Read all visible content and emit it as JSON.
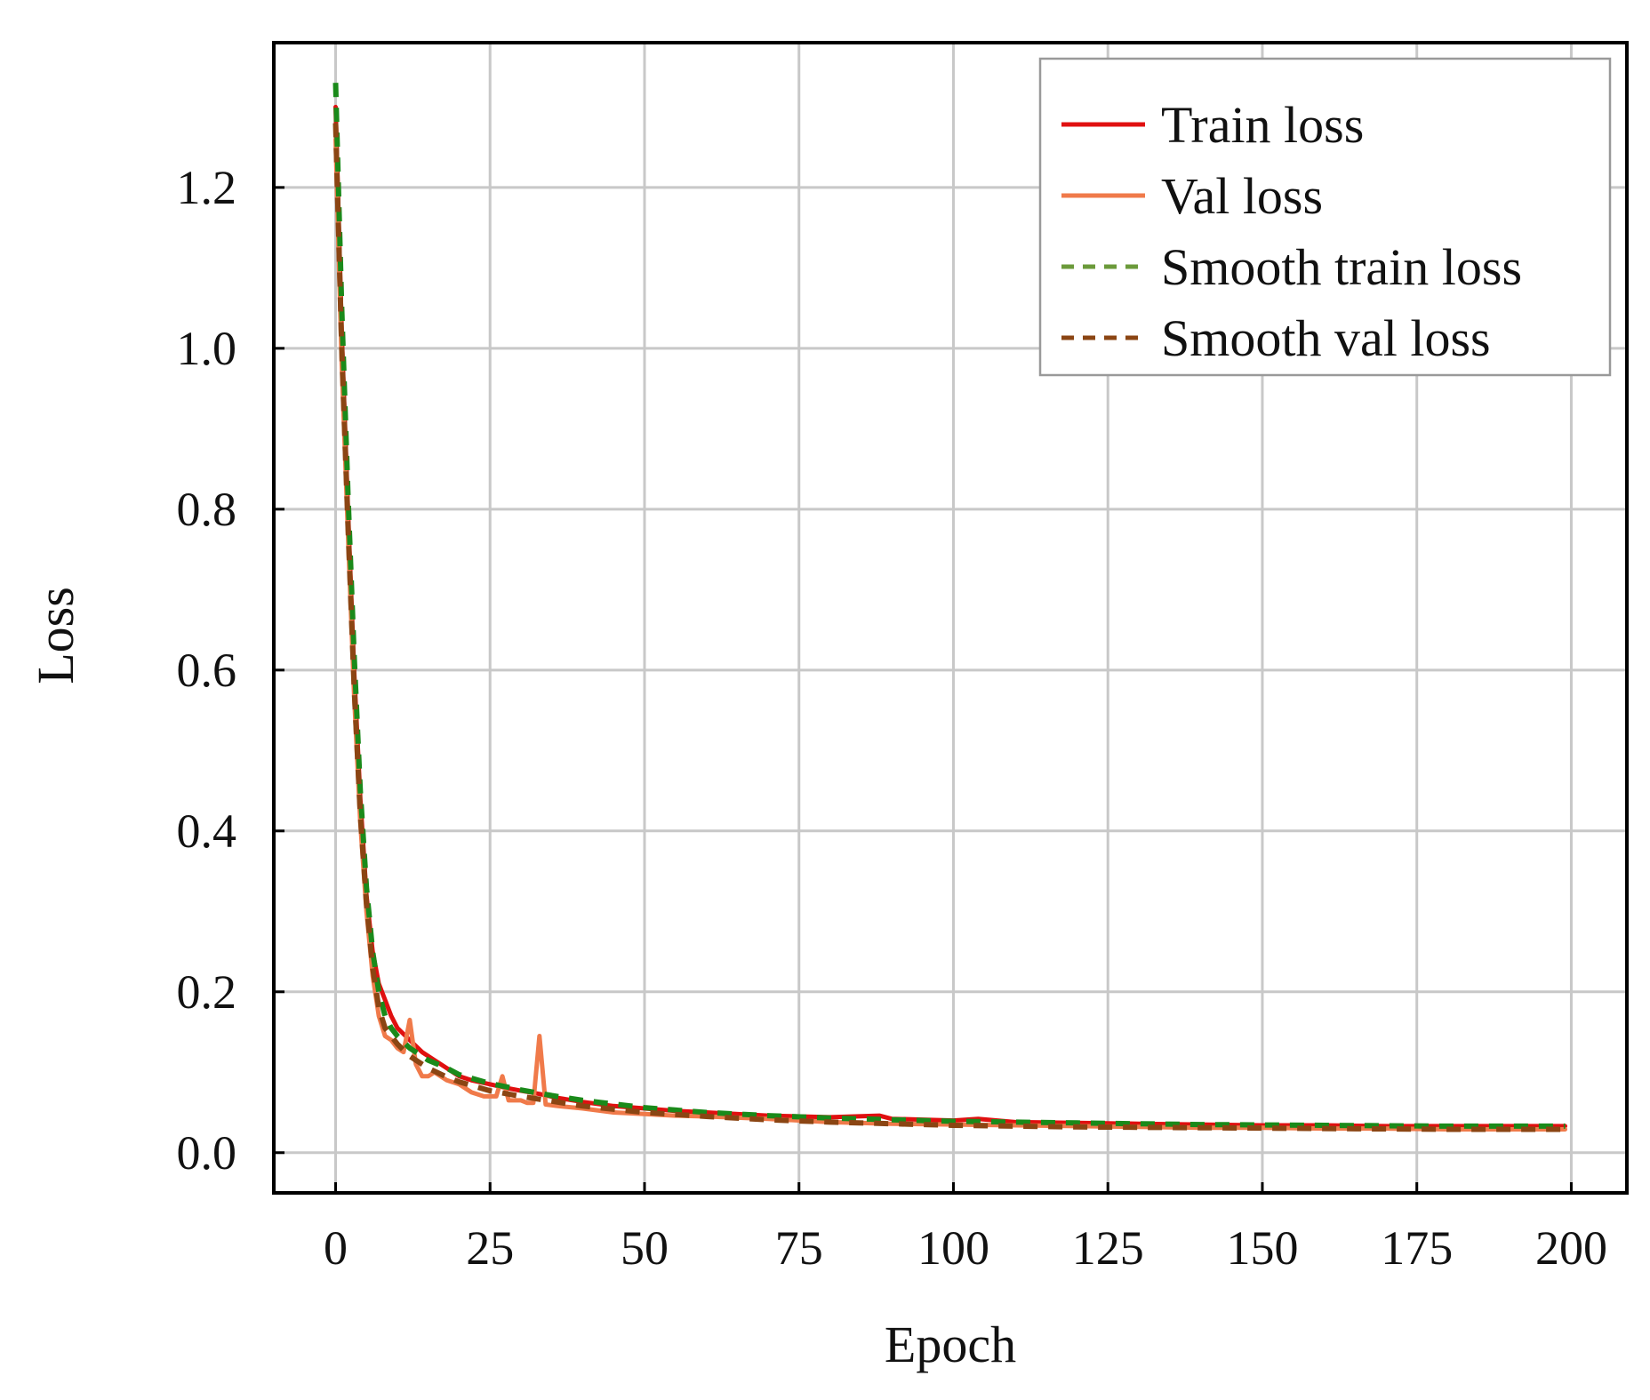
{
  "chart_data": {
    "type": "line",
    "title": "",
    "xlabel": "Epoch",
    "ylabel": "Loss",
    "xlim": [
      -10,
      209
    ],
    "ylim": [
      -0.05,
      1.38
    ],
    "xticks": [
      0,
      25,
      50,
      75,
      100,
      125,
      150,
      175,
      200
    ],
    "yticks": [
      0.0,
      0.2,
      0.4,
      0.6,
      0.8,
      1.0,
      1.2
    ],
    "xtick_labels": [
      "0",
      "25",
      "50",
      "75",
      "100",
      "125",
      "150",
      "175",
      "200"
    ],
    "ytick_labels": [
      "0.0",
      "0.2",
      "0.4",
      "0.6",
      "0.8",
      "1.0",
      "1.2"
    ],
    "grid": true,
    "legend_position": "top-right",
    "series": [
      {
        "name": "Train loss",
        "color": "#e01010",
        "style": "solid",
        "x": [
          0,
          1,
          2,
          3,
          4,
          5,
          6,
          7,
          8,
          9,
          10,
          12,
          14,
          16,
          18,
          20,
          22,
          25,
          28,
          30,
          33,
          36,
          40,
          45,
          50,
          55,
          60,
          70,
          80,
          88,
          90,
          100,
          104,
          110,
          120,
          130,
          140,
          150,
          160,
          170,
          180,
          190,
          199
        ],
        "y": [
          1.3,
          1.02,
          0.8,
          0.6,
          0.44,
          0.32,
          0.25,
          0.21,
          0.19,
          0.17,
          0.155,
          0.14,
          0.125,
          0.115,
          0.105,
          0.095,
          0.09,
          0.085,
          0.08,
          0.077,
          0.073,
          0.068,
          0.063,
          0.058,
          0.055,
          0.052,
          0.05,
          0.046,
          0.044,
          0.046,
          0.042,
          0.04,
          0.042,
          0.038,
          0.037,
          0.036,
          0.035,
          0.034,
          0.034,
          0.033,
          0.033,
          0.033,
          0.033
        ]
      },
      {
        "name": "Val loss",
        "color": "#f07a4a",
        "style": "solid",
        "x": [
          0,
          1,
          2,
          3,
          4,
          5,
          6,
          7,
          8,
          9,
          10,
          11,
          12,
          13,
          14,
          15,
          16,
          18,
          20,
          22,
          24,
          26,
          27,
          28,
          30,
          31,
          32,
          33,
          34,
          36,
          40,
          45,
          50,
          55,
          60,
          70,
          80,
          90,
          100,
          110,
          120,
          130,
          140,
          150,
          160,
          170,
          180,
          190,
          199
        ],
        "y": [
          1.26,
          0.98,
          0.77,
          0.57,
          0.41,
          0.3,
          0.22,
          0.17,
          0.145,
          0.14,
          0.13,
          0.125,
          0.165,
          0.11,
          0.095,
          0.095,
          0.1,
          0.09,
          0.085,
          0.075,
          0.07,
          0.07,
          0.095,
          0.065,
          0.065,
          0.062,
          0.062,
          0.145,
          0.06,
          0.058,
          0.055,
          0.05,
          0.048,
          0.046,
          0.045,
          0.042,
          0.038,
          0.036,
          0.035,
          0.034,
          0.033,
          0.032,
          0.031,
          0.031,
          0.03,
          0.03,
          0.029,
          0.029,
          0.029
        ]
      },
      {
        "name": "Smooth train loss",
        "color": "#1a8a1a",
        "style": "dashed",
        "x": [
          0,
          1,
          2,
          3,
          4,
          5,
          6,
          7,
          8,
          9,
          10,
          12,
          15,
          18,
          20,
          25,
          30,
          35,
          40,
          50,
          60,
          70,
          80,
          90,
          100,
          120,
          140,
          160,
          180,
          199
        ],
        "y": [
          1.33,
          1.05,
          0.82,
          0.62,
          0.45,
          0.33,
          0.25,
          0.2,
          0.17,
          0.155,
          0.145,
          0.13,
          0.115,
          0.105,
          0.097,
          0.086,
          0.078,
          0.071,
          0.065,
          0.056,
          0.05,
          0.046,
          0.043,
          0.041,
          0.039,
          0.037,
          0.035,
          0.034,
          0.033,
          0.033
        ]
      },
      {
        "name": "Smooth val loss",
        "color": "#8b4513",
        "style": "dashed",
        "x": [
          0,
          1,
          2,
          3,
          4,
          5,
          6,
          7,
          8,
          9,
          10,
          12,
          15,
          18,
          20,
          25,
          30,
          35,
          40,
          50,
          60,
          70,
          80,
          90,
          100,
          120,
          140,
          160,
          180,
          199
        ],
        "y": [
          1.28,
          1.0,
          0.78,
          0.58,
          0.42,
          0.31,
          0.23,
          0.18,
          0.155,
          0.145,
          0.135,
          0.12,
          0.105,
          0.094,
          0.088,
          0.077,
          0.07,
          0.064,
          0.058,
          0.05,
          0.045,
          0.041,
          0.038,
          0.036,
          0.034,
          0.032,
          0.031,
          0.03,
          0.029,
          0.029
        ]
      }
    ]
  }
}
